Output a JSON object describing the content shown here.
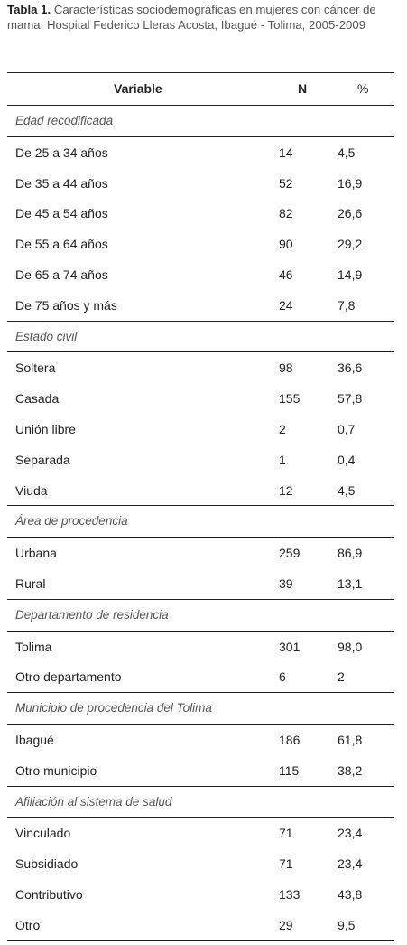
{
  "caption": {
    "label": "Tabla 1.",
    "text": "Características sociodemográficas en mujeres con cáncer de mama. Hospital Federico Lleras Acosta, Ibagué - Tolima, 2005-2009"
  },
  "table": {
    "headers": {
      "variable": "Variable",
      "n": "N",
      "pct": "%"
    },
    "sections": [
      {
        "title": "Edad recodificada",
        "rows": [
          {
            "label": "De 25 a 34 años",
            "n": "14",
            "pct": "4,5"
          },
          {
            "label": "De 35 a 44 años",
            "n": "52",
            "pct": "16,9"
          },
          {
            "label": "De 45 a 54 años",
            "n": "82",
            "pct": "26,6"
          },
          {
            "label": "De 55 a 64 años",
            "n": "90",
            "pct": "29,2"
          },
          {
            "label": "De 65 a 74 años",
            "n": "46",
            "pct": "14,9"
          },
          {
            "label": "De 75 años y más",
            "n": "24",
            "pct": "7,8"
          }
        ]
      },
      {
        "title": "Estado civil",
        "rows": [
          {
            "label": "Soltera",
            "n": "98",
            "pct": "36,6"
          },
          {
            "label": "Casada",
            "n": "155",
            "pct": "57,8"
          },
          {
            "label": "Unión libre",
            "n": "2",
            "pct": "0,7"
          },
          {
            "label": "Separada",
            "n": "1",
            "pct": "0,4"
          },
          {
            "label": "Viuda",
            "n": "12",
            "pct": "4,5"
          }
        ]
      },
      {
        "title": "Área de procedencia",
        "rows": [
          {
            "label": "Urbana",
            "n": "259",
            "pct": "86,9"
          },
          {
            "label": "Rural",
            "n": "39",
            "pct": "13,1"
          }
        ]
      },
      {
        "title": "Departamento de residencia",
        "rows": [
          {
            "label": "Tolima",
            "n": "301",
            "pct": "98,0"
          },
          {
            "label": "Otro departamento",
            "n": "6",
            "pct": "2"
          }
        ]
      },
      {
        "title": "Municipio de procedencia del Tolima",
        "rows": [
          {
            "label": "Ibagué",
            "n": "186",
            "pct": "61,8"
          },
          {
            "label": "Otro municipio",
            "n": "115",
            "pct": "38,2"
          }
        ]
      },
      {
        "title": "Afiliación al sistema de salud",
        "rows": [
          {
            "label": "Vinculado",
            "n": "71",
            "pct": "23,4"
          },
          {
            "label": "Subsidiado",
            "n": "71",
            "pct": "23,4"
          },
          {
            "label": "Contributivo",
            "n": "133",
            "pct": "43,8"
          },
          {
            "label": "Otro",
            "n": "29",
            "pct": "9,5"
          }
        ]
      }
    ]
  }
}
